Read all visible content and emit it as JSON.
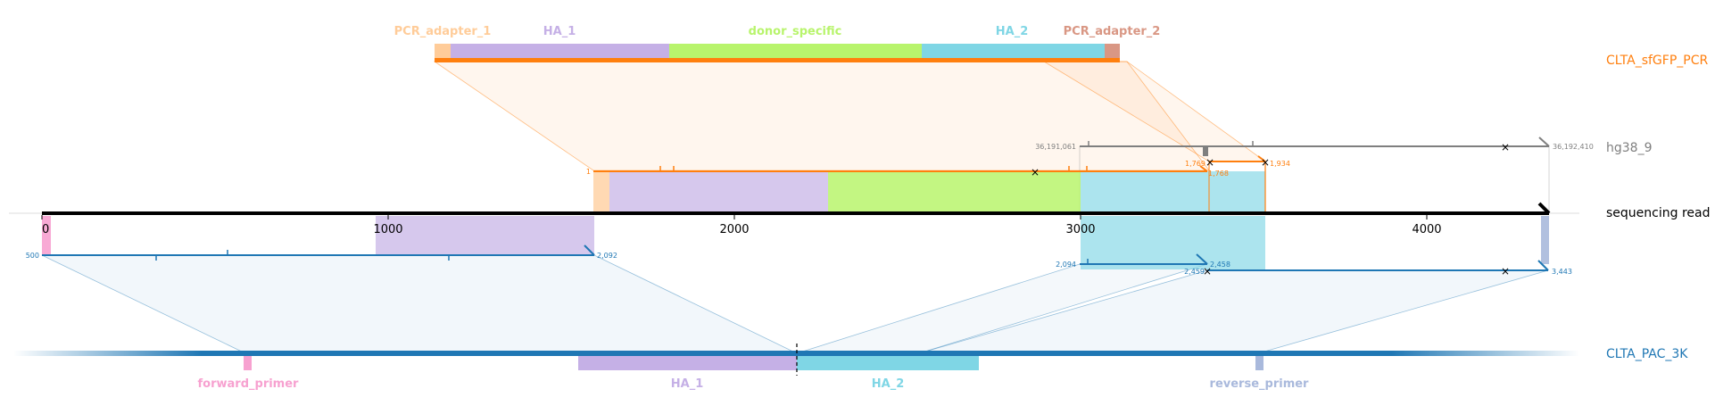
{
  "tracks": {
    "pcr": {
      "label": "CLTA_sfGFP_PCR",
      "color": "#ff7f0e"
    },
    "hg38": {
      "label": "hg38_9",
      "color": "#7f7f7f"
    },
    "read": {
      "label": "sequencing read",
      "color": "#000000"
    },
    "pac": {
      "label": "CLTA_PAC_3K",
      "color": "#1f77b4"
    }
  },
  "features": {
    "pcr_adapter_1": {
      "label": "PCR_adapter_1",
      "color": "#ffcc99"
    },
    "ha_1_top": {
      "label": "HA_1",
      "color": "#c5b0e6"
    },
    "donor_specific": {
      "label": "donor_specific",
      "color": "#b8f46c"
    },
    "ha_2_top": {
      "label": "HA_2",
      "color": "#7fd6e5"
    },
    "pcr_adapter_2": {
      "label": "PCR_adapter_2",
      "color": "#d99784"
    },
    "forward_primer": {
      "label": "forward_primer",
      "color": "#f7a1d0"
    },
    "ha_1_bottom": {
      "label": "HA_1",
      "color": "#c5b0e6"
    },
    "ha_2_bottom": {
      "label": "HA_2",
      "color": "#7fd6e5"
    },
    "reverse_primer": {
      "label": "reverse_primer",
      "color": "#a9b9dc"
    }
  },
  "read_axis": {
    "ticks": [
      "0",
      "1000",
      "2000",
      "3000",
      "4000"
    ]
  },
  "alignments": {
    "pcr_a": {
      "start": "1",
      "end": "1,768"
    },
    "pcr_b": {
      "start": "1,769",
      "end": "1,934"
    },
    "hg38": {
      "start": "36,191,061",
      "end": "36,192,410"
    },
    "pac_a": {
      "start": "500",
      "end": "2,092"
    },
    "pac_b": {
      "start": "2,094",
      "end": "2,458"
    },
    "pac_c": {
      "start": "2,459",
      "end": "3,443"
    }
  }
}
